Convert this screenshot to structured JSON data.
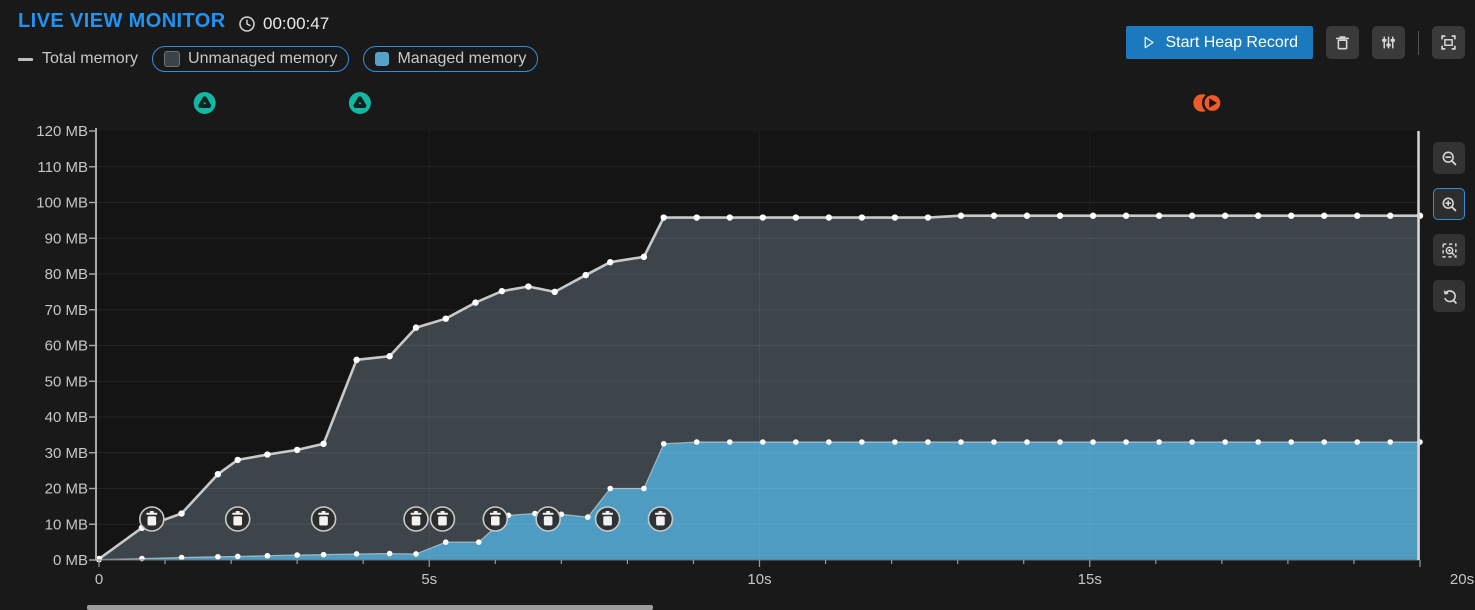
{
  "header": {
    "title": "LIVE VIEW MONITOR",
    "elapsed_time": "00:00:47"
  },
  "legend": {
    "total_label": "Total memory",
    "unmanaged_label": "Unmanaged memory",
    "managed_label": "Managed memory"
  },
  "toolbar": {
    "start_heap_record_label": "Start Heap Record"
  },
  "icons": {
    "clock": "clock-icon",
    "play_outline": "play-outline-icon",
    "trash": "trash-icon",
    "sliders": "sliders-icon",
    "fullscreen": "fullscreen-icon",
    "zoom_out": "zoom-out-icon",
    "zoom_in": "zoom-in-icon",
    "zoom_to_selection": "zoom-to-selection-icon",
    "zoom_reset": "zoom-reset-icon",
    "gc_event": "trash-gc-icon",
    "scene_load": "scene-load-icon",
    "record": "record-marker-icon"
  },
  "colors": {
    "accent_blue": "#2193f0",
    "pill_border_blue": "#2f8fdd",
    "button_blue": "#1b79bd",
    "total_line": "#c9c9c9",
    "managed_area": "#4f9cc3",
    "unmanaged_area": "#3d444a",
    "scene_marker_teal": "#14b8a2",
    "record_marker_orange": "#f05a28"
  },
  "chart_data": {
    "type": "area",
    "title": "Live view memory usage over time",
    "x_unit": "seconds",
    "xlim": [
      0,
      20
    ],
    "ylim": [
      0,
      120
    ],
    "grid": true,
    "x_tick_values": [
      0,
      5,
      10,
      15,
      20
    ],
    "x_tick_labels": [
      "0",
      "5s",
      "10s",
      "15s",
      "20s"
    ],
    "y_tick_labels": [
      "0 MB",
      "10 MB",
      "20 MB",
      "30 MB",
      "40 MB",
      "50 MB",
      "60 MB",
      "70 MB",
      "80 MB",
      "90 MB",
      "100 MB",
      "110 MB",
      "120 MB"
    ],
    "series": [
      {
        "name": "Total memory",
        "style": "line",
        "unit": "MB",
        "points": [
          [
            0,
            0.3
          ],
          [
            0.65,
            9
          ],
          [
            1.25,
            13
          ],
          [
            1.8,
            24
          ],
          [
            2.1,
            28
          ],
          [
            2.55,
            29.5
          ],
          [
            3.0,
            30.8
          ],
          [
            3.4,
            32.5
          ],
          [
            3.9,
            56
          ],
          [
            4.4,
            57
          ],
          [
            4.8,
            65
          ],
          [
            5.25,
            67.5
          ],
          [
            5.7,
            72
          ],
          [
            6.1,
            75.2
          ],
          [
            6.5,
            76.5
          ],
          [
            6.9,
            75
          ],
          [
            7.37,
            79.7
          ],
          [
            7.74,
            83.3
          ],
          [
            8.25,
            84.8
          ],
          [
            8.55,
            95.8
          ],
          [
            9.05,
            95.8
          ],
          [
            9.55,
            95.8
          ],
          [
            10.05,
            95.8
          ],
          [
            10.55,
            95.8
          ],
          [
            11.05,
            95.8
          ],
          [
            11.55,
            95.8
          ],
          [
            12.05,
            95.8
          ],
          [
            12.55,
            95.8
          ],
          [
            13.05,
            96.3
          ],
          [
            13.55,
            96.3
          ],
          [
            14.05,
            96.3
          ],
          [
            14.55,
            96.3
          ],
          [
            15.05,
            96.3
          ],
          [
            15.55,
            96.3
          ],
          [
            16.05,
            96.3
          ],
          [
            16.55,
            96.3
          ],
          [
            17.05,
            96.3
          ],
          [
            17.55,
            96.3
          ],
          [
            18.05,
            96.3
          ],
          [
            18.55,
            96.3
          ],
          [
            19.05,
            96.3
          ],
          [
            19.55,
            96.3
          ],
          [
            20,
            96.3
          ]
        ]
      },
      {
        "name": "Managed memory",
        "style": "area",
        "unit": "MB",
        "points": [
          [
            0,
            0.1
          ],
          [
            0.65,
            0.4
          ],
          [
            1.25,
            0.7
          ],
          [
            1.8,
            0.9
          ],
          [
            2.1,
            1.0
          ],
          [
            2.55,
            1.2
          ],
          [
            3.0,
            1.4
          ],
          [
            3.4,
            1.5
          ],
          [
            3.9,
            1.7
          ],
          [
            4.4,
            1.8
          ],
          [
            4.8,
            1.7
          ],
          [
            5.25,
            5
          ],
          [
            5.75,
            5
          ],
          [
            6.2,
            12.5
          ],
          [
            6.6,
            13
          ],
          [
            7.0,
            12.8
          ],
          [
            7.4,
            12
          ],
          [
            7.74,
            20
          ],
          [
            8.25,
            20
          ],
          [
            8.55,
            32.5
          ],
          [
            9.05,
            33
          ],
          [
            9.55,
            33
          ],
          [
            10.05,
            33
          ],
          [
            10.55,
            33
          ],
          [
            11.05,
            33
          ],
          [
            11.55,
            33
          ],
          [
            12.05,
            33
          ],
          [
            12.55,
            33
          ],
          [
            13.05,
            33
          ],
          [
            13.55,
            33
          ],
          [
            14.05,
            33
          ],
          [
            14.55,
            33
          ],
          [
            15.05,
            33
          ],
          [
            15.55,
            33
          ],
          [
            16.05,
            33
          ],
          [
            16.55,
            33
          ],
          [
            17.05,
            33
          ],
          [
            17.55,
            33
          ],
          [
            18.05,
            33
          ],
          [
            18.55,
            33
          ],
          [
            19.05,
            33
          ],
          [
            19.55,
            33
          ],
          [
            20,
            33
          ]
        ]
      },
      {
        "name": "Unmanaged memory",
        "style": "area-between",
        "unit": "MB",
        "note": "rendered as the band between Managed memory and Total memory"
      }
    ],
    "gc_event_times_s": [
      0.8,
      2.1,
      3.4,
      4.8,
      5.2,
      6.0,
      6.8,
      7.7,
      8.5
    ],
    "scene_marker_times_s": [
      1.6,
      3.95
    ],
    "record_marker_time_s": 16.8,
    "legend_position": "top-left"
  }
}
